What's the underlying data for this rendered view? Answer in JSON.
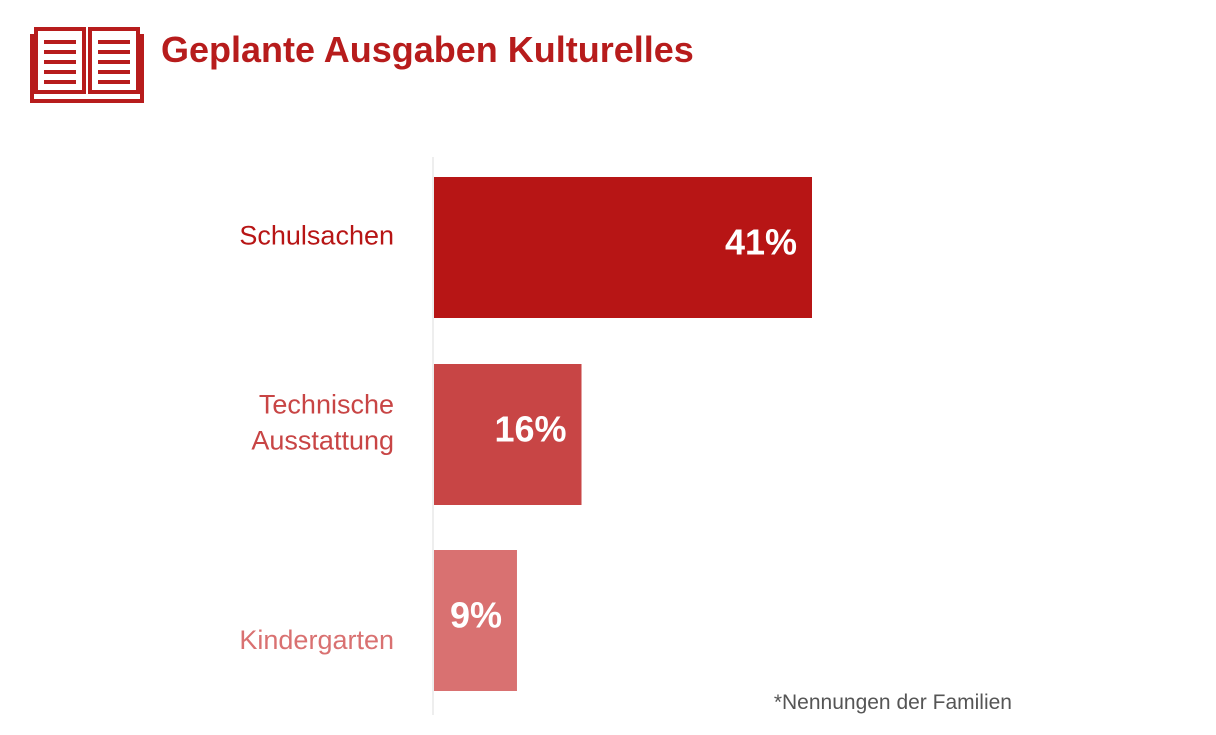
{
  "header": {
    "title": "Geplante Ausgaben Kulturelles",
    "icon": "open-book-icon",
    "accent_color": "#b71c1c"
  },
  "chart_data": {
    "type": "bar",
    "orientation": "horizontal",
    "title": "Geplante Ausgaben Kulturelles",
    "categories": [
      "Schulsachen",
      "Technische Ausstattung",
      "Kindergarten"
    ],
    "category_lines": [
      [
        "Schulsachen"
      ],
      [
        "Technische",
        "Ausstattung"
      ],
      [
        "Kindergarten"
      ]
    ],
    "values": [
      41,
      16,
      9
    ],
    "value_labels": [
      "41%",
      "16%",
      "9%"
    ],
    "unit": "%",
    "xlim": [
      0,
      100
    ],
    "grid": false,
    "colors": [
      "#b71515",
      "#c84545",
      "#d97171"
    ],
    "label_colors": [
      "#b71515",
      "#c84545",
      "#d97171"
    ]
  },
  "footnote": "*Nennungen der Familien"
}
